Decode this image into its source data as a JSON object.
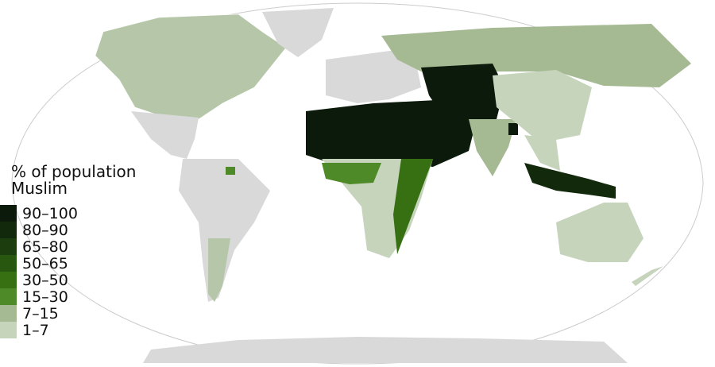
{
  "legend": {
    "title_line1": "% of population",
    "title_line2": "Muslim",
    "items": [
      {
        "label": "90–100",
        "color": "#0b1a0a"
      },
      {
        "label": "80–90",
        "color": "#12290c"
      },
      {
        "label": "65–80",
        "color": "#1c3e0e"
      },
      {
        "label": "50–65",
        "color": "#28570f"
      },
      {
        "label": "30–50",
        "color": "#367012"
      },
      {
        "label": "15–30",
        "color": "#4e8b28"
      },
      {
        "label": "7–15",
        "color": "#a5b993"
      },
      {
        "label": "1–7",
        "color": "#c6d4bc"
      }
    ]
  },
  "no_data_color": "#d9d9d9",
  "regions": [
    {
      "name": "north-america",
      "class": "1–7"
    },
    {
      "name": "greenland",
      "class": "no-data"
    },
    {
      "name": "central-america",
      "class": "no-data"
    },
    {
      "name": "south-america",
      "class": "no-data"
    },
    {
      "name": "europe",
      "class": "1–7"
    },
    {
      "name": "russia",
      "class": "7–15"
    },
    {
      "name": "central-asia",
      "class": "90–100"
    },
    {
      "name": "middle-east-north-africa",
      "class": "90–100"
    },
    {
      "name": "sub-saharan-africa",
      "class": "15–30"
    },
    {
      "name": "india",
      "class": "7–15"
    },
    {
      "name": "china",
      "class": "1–7"
    },
    {
      "name": "indonesia",
      "class": "80–90"
    },
    {
      "name": "australia",
      "class": "1–7"
    },
    {
      "name": "antarctica",
      "class": "no-data"
    }
  ]
}
